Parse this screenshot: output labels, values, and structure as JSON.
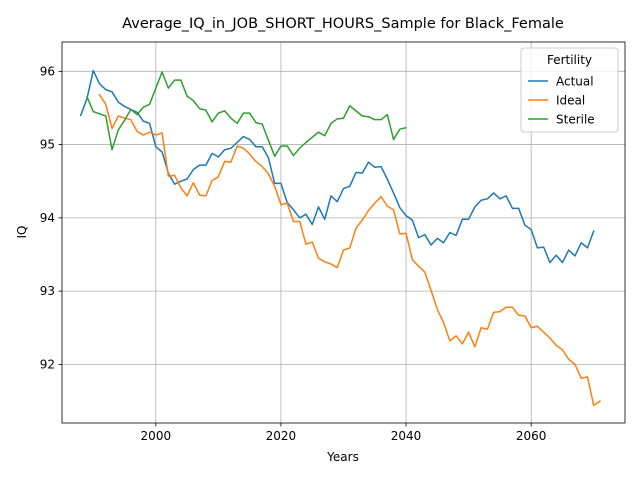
{
  "chart_data": {
    "type": "line",
    "title": "Average_IQ_in_JOB_SHORT_HOURS_Sample for Black_Female",
    "xlabel": "Years",
    "ylabel": "IQ",
    "xlim": [
      1985,
      2075
    ],
    "ylim": [
      91.2,
      96.4
    ],
    "xticks": [
      2000,
      2020,
      2040,
      2060
    ],
    "yticks": [
      92,
      93,
      94,
      95,
      96
    ],
    "grid": true,
    "legend": {
      "title": "Fertility",
      "placement": "top-right"
    },
    "series": [
      {
        "name": "Actual",
        "color": "#1f77b4",
        "x_start": 1988,
        "values": [
          95.4,
          95.63,
          96.01,
          95.83,
          95.75,
          95.72,
          95.58,
          95.52,
          95.48,
          95.44,
          95.32,
          95.29,
          94.97,
          94.9,
          94.61,
          94.46,
          94.5,
          94.53,
          94.66,
          94.72,
          94.72,
          94.88,
          94.83,
          94.93,
          94.95,
          95.03,
          95.11,
          95.07,
          94.97,
          94.97,
          94.82,
          94.47,
          94.47,
          94.21,
          94.11,
          94.0,
          94.05,
          93.91,
          94.15,
          93.98,
          94.3,
          94.22,
          94.4,
          94.43,
          94.62,
          94.61,
          94.76,
          94.69,
          94.7,
          94.53,
          94.34,
          94.14,
          94.03,
          93.97,
          93.73,
          93.77,
          93.63,
          93.72,
          93.66,
          93.8,
          93.76,
          93.98,
          93.98,
          94.15,
          94.24,
          94.26,
          94.34,
          94.26,
          94.3,
          94.13,
          94.13,
          93.9,
          93.84,
          93.59,
          93.6,
          93.39,
          93.49,
          93.39,
          93.56,
          93.48,
          93.66,
          93.59,
          93.82
        ]
      },
      {
        "name": "Ideal",
        "color": "#ff7f0e",
        "x_start": 1991,
        "values": [
          95.68,
          95.55,
          95.22,
          95.39,
          95.36,
          95.34,
          95.18,
          95.13,
          95.17,
          95.13,
          95.16,
          94.57,
          94.58,
          94.41,
          94.3,
          94.48,
          94.31,
          94.3,
          94.51,
          94.56,
          94.77,
          94.76,
          94.98,
          94.95,
          94.87,
          94.77,
          94.7,
          94.6,
          94.43,
          94.18,
          94.2,
          93.95,
          93.95,
          93.64,
          93.67,
          93.45,
          93.4,
          93.37,
          93.32,
          93.56,
          93.59,
          93.86,
          93.97,
          94.1,
          94.2,
          94.29,
          94.16,
          94.11,
          93.78,
          93.79,
          93.43,
          93.34,
          93.26,
          93.01,
          92.75,
          92.57,
          92.32,
          92.39,
          92.28,
          92.44,
          92.24,
          92.5,
          92.48,
          92.71,
          92.72,
          92.78,
          92.78,
          92.67,
          92.66,
          92.5,
          92.52,
          92.44,
          92.36,
          92.26,
          92.2,
          92.07,
          92.0,
          91.81,
          91.83,
          91.44,
          91.5
        ]
      },
      {
        "name": "Sterile",
        "color": "#2ca02c",
        "x_start": 1989,
        "values": [
          95.65,
          95.45,
          95.42,
          95.39,
          94.93,
          95.2,
          95.33,
          95.48,
          95.41,
          95.51,
          95.55,
          95.77,
          95.99,
          95.77,
          95.88,
          95.88,
          95.66,
          95.6,
          95.49,
          95.47,
          95.31,
          95.43,
          95.46,
          95.36,
          95.29,
          95.43,
          95.43,
          95.3,
          95.28,
          95.06,
          94.84,
          94.98,
          94.98,
          94.85,
          94.95,
          95.03,
          95.1,
          95.17,
          95.12,
          95.29,
          95.35,
          95.36,
          95.53,
          95.46,
          95.39,
          95.38,
          95.34,
          95.34,
          95.41,
          95.07,
          95.21,
          95.23
        ]
      }
    ]
  }
}
